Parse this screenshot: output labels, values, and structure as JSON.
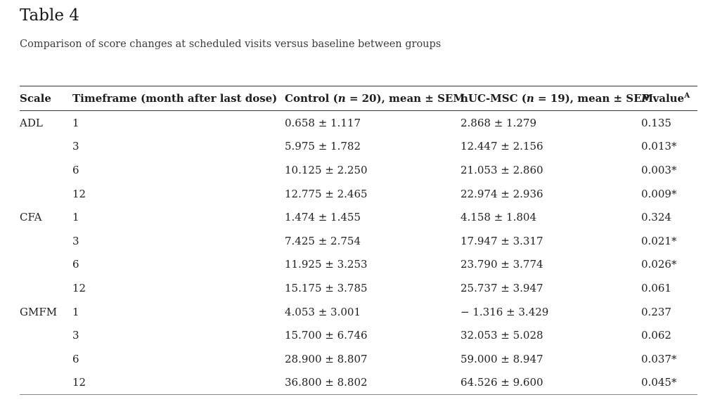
{
  "title": "Table 4",
  "caption": "Comparison of score changes at scheduled visits versus baseline between groups",
  "table": {
    "columns": [
      {
        "label": "Scale"
      },
      {
        "label": "Timeframe (month after last dose)"
      },
      {
        "pre": "Control (",
        "italic": "n",
        "post": " = 20), mean ± SEM"
      },
      {
        "pre": "hUC-MSC (",
        "italic": "n",
        "post": " = 19), mean ± SEM"
      },
      {
        "italic": "P",
        "post": " value",
        "sup": "A"
      }
    ],
    "rows": [
      {
        "scale": "ADL",
        "timeframe": "1",
        "control": "0.658 ± 1.117",
        "huc_msc": "2.868 ± 1.279",
        "p_value": "0.135"
      },
      {
        "scale": "",
        "timeframe": "3",
        "control": "5.975 ± 1.782",
        "huc_msc": "12.447 ± 2.156",
        "p_value": "0.013*"
      },
      {
        "scale": "",
        "timeframe": "6",
        "control": "10.125 ± 2.250",
        "huc_msc": "21.053 ± 2.860",
        "p_value": "0.003*"
      },
      {
        "scale": "",
        "timeframe": "12",
        "control": "12.775 ± 2.465",
        "huc_msc": "22.974 ± 2.936",
        "p_value": "0.009*"
      },
      {
        "scale": "CFA",
        "timeframe": "1",
        "control": "1.474 ± 1.455",
        "huc_msc": "4.158 ± 1.804",
        "p_value": "0.324"
      },
      {
        "scale": "",
        "timeframe": "3",
        "control": "7.425 ± 2.754",
        "huc_msc": "17.947 ± 3.317",
        "p_value": "0.021*"
      },
      {
        "scale": "",
        "timeframe": "6",
        "control": "11.925 ± 3.253",
        "huc_msc": "23.790 ± 3.774",
        "p_value": "0.026*"
      },
      {
        "scale": "",
        "timeframe": "12",
        "control": "15.175 ± 3.785",
        "huc_msc": "25.737 ± 3.947",
        "p_value": "0.061"
      },
      {
        "scale": "GMFM",
        "timeframe": "1",
        "control": "4.053 ± 3.001",
        "huc_msc": "− 1.316 ± 3.429",
        "p_value": "0.237"
      },
      {
        "scale": "",
        "timeframe": "3",
        "control": "15.700 ± 6.746",
        "huc_msc": "32.053 ± 5.028",
        "p_value": "0.062"
      },
      {
        "scale": "",
        "timeframe": "6",
        "control": "28.900 ± 8.807",
        "huc_msc": "59.000 ± 8.947",
        "p_value": "0.037*"
      },
      {
        "scale": "",
        "timeframe": "12",
        "control": "36.800 ± 8.802",
        "huc_msc": "64.526 ± 9.600",
        "p_value": "0.045*"
      }
    ]
  }
}
